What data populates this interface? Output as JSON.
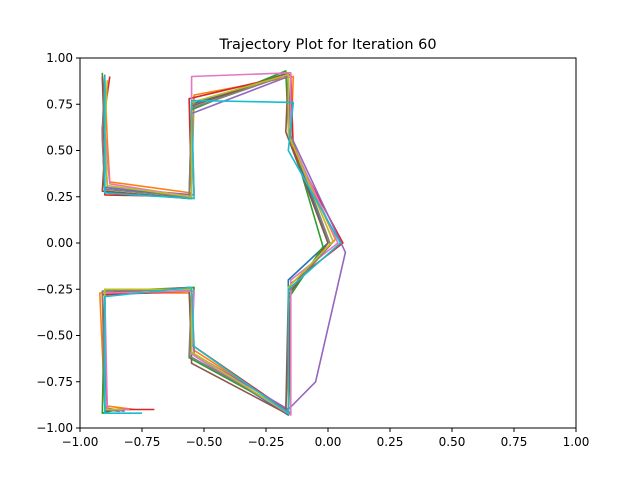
{
  "chart_data": {
    "type": "line",
    "title": "Trajectory Plot for Iteration 60",
    "xlabel": "",
    "ylabel": "",
    "xlim": [
      -1.0,
      1.0
    ],
    "ylim": [
      -1.0,
      1.0
    ],
    "xticks": [
      "−1.00",
      "−0.75",
      "−0.50",
      "−0.25",
      "0.00",
      "0.25",
      "0.50",
      "0.75",
      "1.00"
    ],
    "yticks": [
      "1.00",
      "0.75",
      "0.50",
      "0.25",
      "0.00",
      "−0.25",
      "−0.50",
      "−0.75",
      "−1.00"
    ],
    "grid": false,
    "legend": "none",
    "palette": [
      "#1f77b4",
      "#ff7f0e",
      "#2ca02c",
      "#d62728",
      "#9467bd",
      "#8c564b",
      "#e377c2",
      "#7f7f7f",
      "#bcbd22",
      "#17becf"
    ],
    "series": [
      {
        "color": "#1f77b4",
        "x": [
          -0.9,
          -0.91,
          -0.9,
          -0.55,
          -0.55,
          -0.16,
          -0.16,
          0.0,
          -0.16,
          -0.16,
          -0.55,
          -0.55,
          -0.9,
          -0.9,
          -0.8
        ],
        "y": [
          0.9,
          0.6,
          0.3,
          0.25,
          0.75,
          0.92,
          0.6,
          0.0,
          -0.2,
          -0.93,
          -0.6,
          -0.25,
          -0.25,
          -0.9,
          -0.9
        ]
      },
      {
        "color": "#ff7f0e",
        "x": [
          -0.9,
          -0.89,
          -0.88,
          -0.55,
          -0.54,
          -0.14,
          -0.15,
          0.03,
          -0.15,
          -0.17,
          -0.54,
          -0.56,
          -0.92,
          -0.9,
          -0.78
        ],
        "y": [
          0.88,
          0.55,
          0.33,
          0.27,
          0.8,
          0.9,
          0.55,
          0.02,
          -0.25,
          -0.9,
          -0.58,
          -0.27,
          -0.27,
          -0.88,
          -0.9
        ]
      },
      {
        "color": "#2ca02c",
        "x": [
          -0.91,
          -0.9,
          -0.9,
          -0.56,
          -0.55,
          -0.17,
          -0.16,
          -0.02,
          -0.16,
          -0.15,
          -0.56,
          -0.54,
          -0.9,
          -0.91,
          -0.85
        ],
        "y": [
          0.92,
          0.58,
          0.28,
          0.24,
          0.72,
          0.93,
          0.62,
          -0.02,
          -0.3,
          -0.92,
          -0.62,
          -0.24,
          -0.26,
          -0.92,
          -0.9
        ]
      },
      {
        "color": "#d62728",
        "x": [
          -0.88,
          -0.91,
          -0.9,
          -0.55,
          -0.56,
          -0.15,
          -0.14,
          0.06,
          -0.15,
          -0.16,
          -0.55,
          -0.55,
          -0.91,
          -0.89,
          -0.7
        ],
        "y": [
          0.9,
          0.62,
          0.26,
          0.25,
          0.78,
          0.91,
          0.5,
          0.0,
          -0.22,
          -0.91,
          -0.55,
          -0.26,
          -0.28,
          -0.9,
          -0.9
        ]
      },
      {
        "color": "#9467bd",
        "x": [
          -0.9,
          -0.9,
          -0.89,
          -0.54,
          -0.55,
          -0.16,
          -0.15,
          0.07,
          -0.05,
          -0.16,
          -0.54,
          -0.55,
          -0.9,
          -0.9,
          -0.82
        ],
        "y": [
          0.87,
          0.57,
          0.3,
          0.26,
          0.7,
          0.9,
          0.58,
          -0.05,
          -0.75,
          -0.9,
          -0.6,
          -0.25,
          -0.25,
          -0.89,
          -0.91
        ]
      },
      {
        "color": "#8c564b",
        "x": [
          -0.91,
          -0.9,
          -0.91,
          -0.55,
          -0.55,
          -0.16,
          -0.17,
          0.0,
          -0.16,
          -0.17,
          -0.55,
          -0.56,
          -0.9,
          -0.9,
          -0.86
        ],
        "y": [
          0.9,
          0.5,
          0.28,
          0.24,
          0.74,
          0.92,
          0.6,
          0.0,
          -0.28,
          -0.92,
          -0.65,
          -0.24,
          -0.27,
          -0.91,
          -0.9
        ]
      },
      {
        "color": "#e377c2",
        "x": [
          -0.9,
          -0.9,
          -0.88,
          -0.55,
          -0.55,
          -0.15,
          -0.15,
          0.04,
          -0.15,
          -0.15,
          -0.55,
          -0.54,
          -0.9,
          -0.89,
          -0.8
        ],
        "y": [
          0.89,
          0.6,
          0.32,
          0.25,
          0.9,
          0.92,
          0.56,
          0.0,
          -0.2,
          -0.93,
          -0.6,
          -0.26,
          -0.27,
          -0.9,
          -0.9
        ]
      },
      {
        "color": "#7f7f7f",
        "x": [
          -0.9,
          -0.91,
          -0.9,
          -0.56,
          -0.55,
          -0.16,
          -0.16,
          0.01,
          -0.16,
          -0.16,
          -0.56,
          -0.55,
          -0.91,
          -0.9,
          -0.84
        ],
        "y": [
          0.91,
          0.56,
          0.29,
          0.25,
          0.73,
          0.91,
          0.61,
          -0.01,
          -0.26,
          -0.91,
          -0.61,
          -0.25,
          -0.26,
          -0.9,
          -0.91
        ]
      },
      {
        "color": "#bcbd22",
        "x": [
          -0.89,
          -0.9,
          -0.89,
          -0.55,
          -0.55,
          -0.16,
          -0.16,
          0.02,
          -0.16,
          -0.16,
          -0.55,
          -0.55,
          -0.9,
          -0.9,
          -0.83
        ],
        "y": [
          0.88,
          0.59,
          0.31,
          0.25,
          0.76,
          0.91,
          0.59,
          0.01,
          -0.24,
          -0.92,
          -0.59,
          -0.25,
          -0.25,
          -0.9,
          -0.9
        ]
      },
      {
        "color": "#17becf",
        "x": [
          -0.9,
          -0.9,
          -0.9,
          -0.54,
          -0.55,
          -0.14,
          -0.16,
          0.05,
          -0.16,
          -0.16,
          -0.54,
          -0.55,
          -0.9,
          -0.9,
          -0.75
        ],
        "y": [
          0.9,
          0.54,
          0.27,
          0.24,
          0.77,
          0.76,
          0.5,
          0.0,
          -0.25,
          -0.92,
          -0.56,
          -0.24,
          -0.29,
          -0.92,
          -0.92
        ]
      }
    ]
  }
}
